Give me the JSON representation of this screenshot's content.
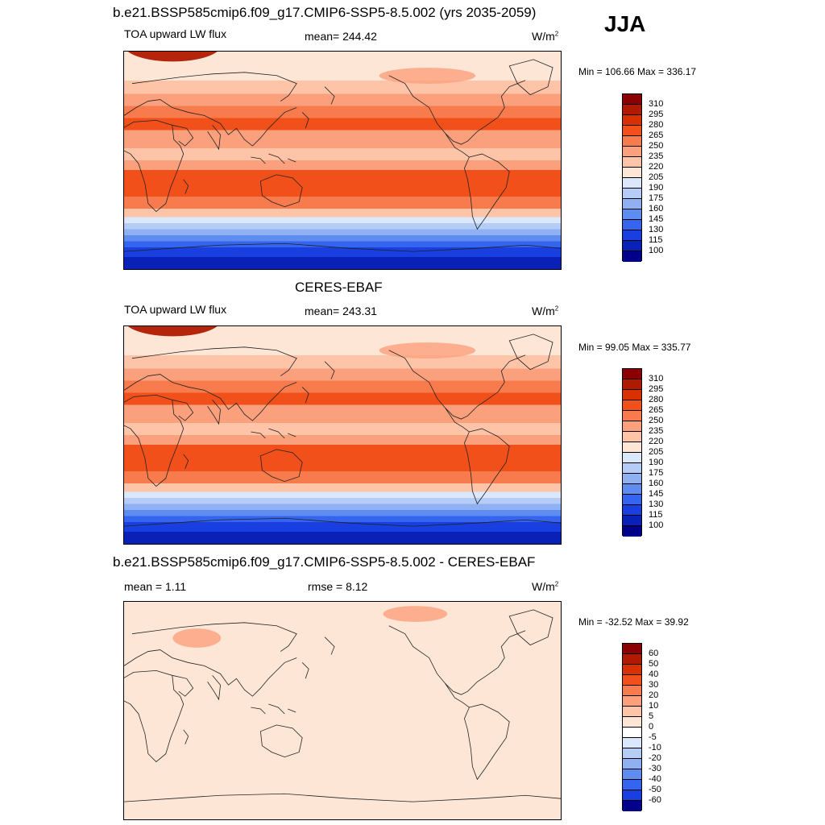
{
  "season": "JJA",
  "panels": [
    {
      "title": "b.e21.BSSP585cmip6.f09_g17.CMIP6-SSP5-8.5.002 (yrs 2035-2059)",
      "left": "TOA upward LW flux",
      "center": "mean= 244.42",
      "units": "W/m",
      "units_sup": "2",
      "minmax": "Min = 106.66 Max = 336.17",
      "scale": "abs",
      "pattern": "model"
    },
    {
      "title": "CERES-EBAF",
      "left": "TOA upward LW flux",
      "center": "mean= 243.31",
      "units": "W/m",
      "units_sup": "2",
      "minmax": "Min =  99.05 Max = 335.77",
      "scale": "abs",
      "pattern": "obs"
    },
    {
      "title": "b.e21.BSSP585cmip6.f09_g17.CMIP6-SSP5-8.5.002 - CERES-EBAF",
      "left": "mean =   1.11",
      "center": "rmse =   8.12",
      "units": "W/m",
      "units_sup": "2",
      "minmax": "Min = -32.52 Max =  39.92",
      "scale": "diff",
      "pattern": "diff"
    }
  ],
  "colorbars": {
    "abs": {
      "labels": [
        "310",
        "295",
        "280",
        "265",
        "250",
        "235",
        "220",
        "205",
        "190",
        "175",
        "160",
        "145",
        "130",
        "115",
        "100"
      ],
      "colors": [
        "#8b0000",
        "#b01a00",
        "#d83000",
        "#f2501a",
        "#f77b4d",
        "#fba07c",
        "#fdc4a8",
        "#fde6d6",
        "#dbe8fb",
        "#b5cdf6",
        "#8fb1f1",
        "#5f8cf0",
        "#3565ee",
        "#1a3fe0",
        "#0a21b8",
        "#00008b"
      ]
    },
    "diff": {
      "labels": [
        "60",
        "50",
        "40",
        "30",
        "20",
        "10",
        "5",
        "0",
        "-5",
        "-10",
        "-20",
        "-30",
        "-40",
        "-50",
        "-60"
      ],
      "colors": [
        "#8b0000",
        "#b01a00",
        "#d83000",
        "#f2501a",
        "#f77b4d",
        "#fba07c",
        "#fdc4a8",
        "#fde6d6",
        "#ffffff",
        "#dbe8fb",
        "#b5cdf6",
        "#8fb1f1",
        "#5f8cf0",
        "#3565ee",
        "#1a3fe0",
        "#00008b"
      ]
    }
  }
}
